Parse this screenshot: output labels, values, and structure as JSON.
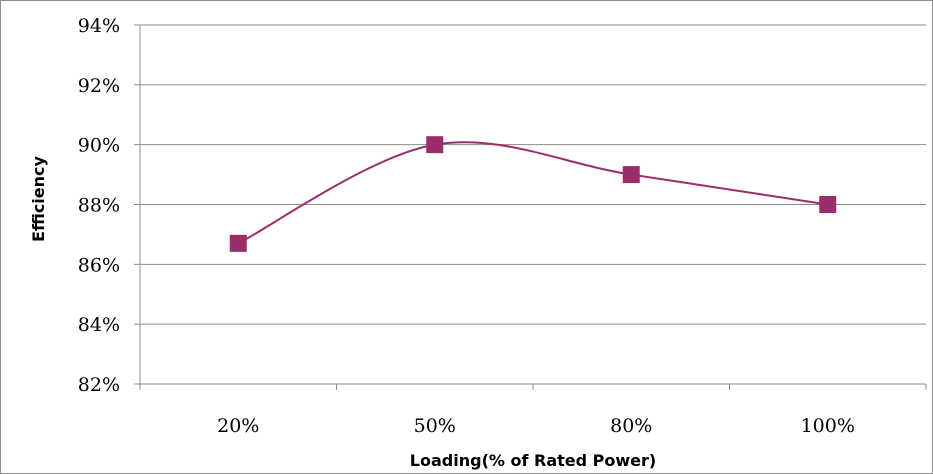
{
  "chart_data": {
    "type": "line",
    "title": "",
    "xlabel": "Loading(% of Rated Power)",
    "ylabel": "Efficiency",
    "categories": [
      "20%",
      "50%",
      "80%",
      "100%"
    ],
    "series": [
      {
        "values": [
          86.7,
          90.0,
          89.0,
          88.0
        ],
        "color": "#9b2d6b",
        "marker": "square",
        "smooth": true
      }
    ],
    "ylim": [
      82,
      94
    ],
    "yticks": [
      82,
      84,
      86,
      88,
      90,
      92,
      94
    ],
    "ytick_labels": [
      "82%",
      "84%",
      "86%",
      "88%",
      "90%",
      "92%",
      "94%"
    ],
    "grid": true,
    "legend": "none",
    "colors": {
      "line": "#9b2d6b",
      "grid": "#8c8c8c",
      "axis": "#8c8c8c"
    }
  }
}
